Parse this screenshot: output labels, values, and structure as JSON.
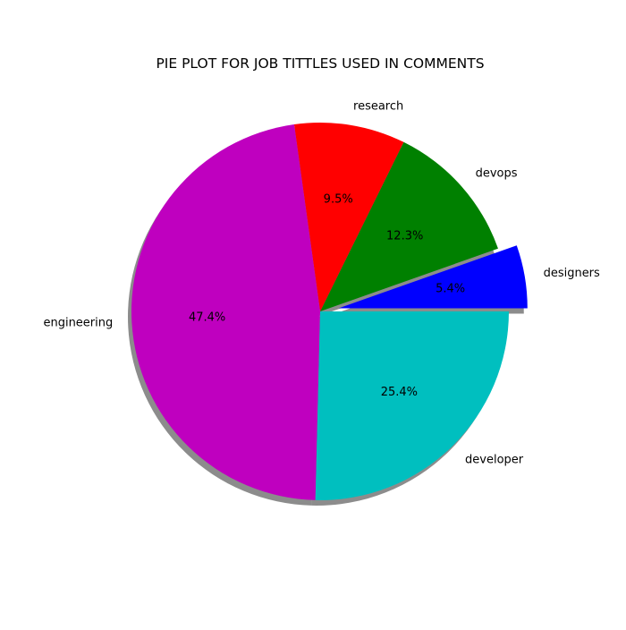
{
  "chart_data": {
    "type": "pie",
    "title": "PIE PLOT FOR JOB TITTLES USED IN COMMENTS",
    "slices": [
      {
        "label": "designers",
        "value": 5.4,
        "pct_label": "5.4%",
        "color": "#0000ff",
        "exploded": true
      },
      {
        "label": "devops",
        "value": 12.3,
        "pct_label": "12.3%",
        "color": "#008000",
        "exploded": false
      },
      {
        "label": "research",
        "value": 9.5,
        "pct_label": "9.5%",
        "color": "#ff0000",
        "exploded": false
      },
      {
        "label": "engineering",
        "value": 47.4,
        "pct_label": "47.4%",
        "color": "#bf00bf",
        "exploded": false
      },
      {
        "label": "developer",
        "value": 25.4,
        "pct_label": "25.4%",
        "color": "#00bfbf",
        "exploded": false
      }
    ],
    "start_angle_deg": 0,
    "direction": "counterclockwise",
    "shadow": true,
    "legend": false
  }
}
